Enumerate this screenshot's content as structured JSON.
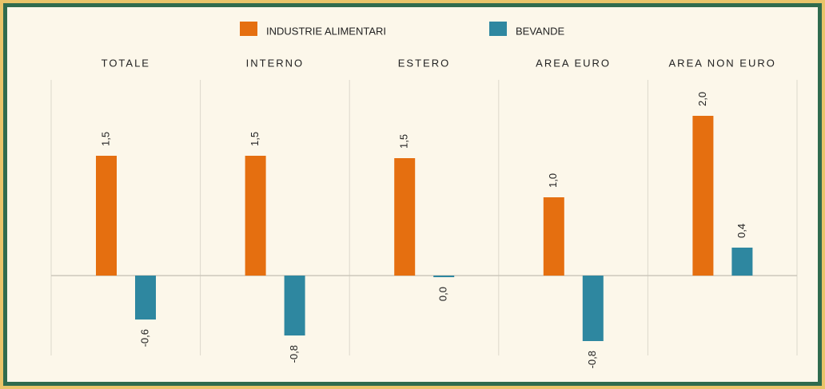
{
  "chart_data": {
    "type": "bar",
    "categories": [
      "TOTALE",
      "INTERNO",
      "ESTERO",
      "AREA EURO",
      "AREA NON EURO"
    ],
    "series": [
      {
        "name": "INDUSTRIE ALIMENTARI",
        "color": "#e56f10",
        "values": [
          1.5,
          1.5,
          1.47,
          0.98,
          2.0
        ],
        "value_labels": [
          "1,5",
          "1,5",
          "1,5",
          "1,0",
          "2,0"
        ]
      },
      {
        "name": "BEVANDE",
        "color": "#2e87a0",
        "values": [
          -0.55,
          -0.75,
          -0.02,
          -0.82,
          0.35
        ],
        "value_labels": [
          "-0,6",
          "-0,8",
          "0,0",
          "-0,8",
          "0,4"
        ]
      }
    ],
    "ylim": [
      -1.0,
      2.45
    ]
  }
}
